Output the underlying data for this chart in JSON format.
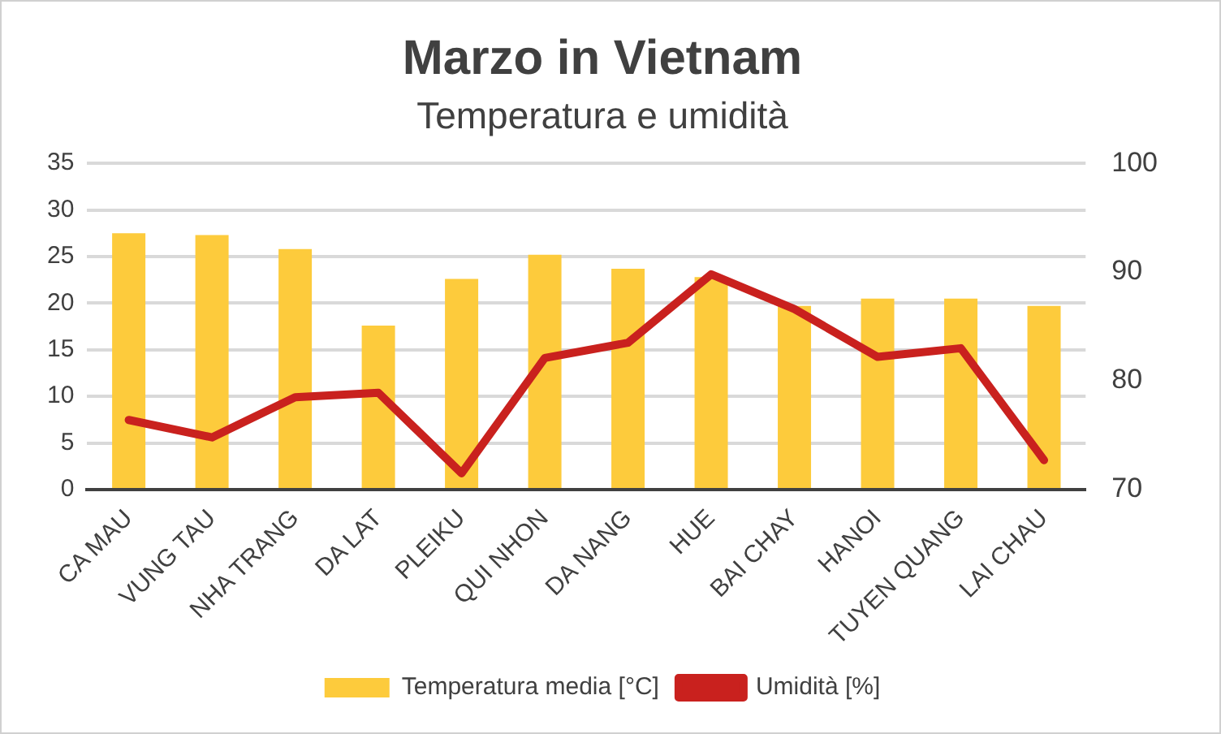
{
  "chart_data": {
    "type": "bar",
    "title": "Marzo in Vietnam",
    "subtitle": "Temperatura e umidità",
    "categories": [
      "CA MAU",
      "VUNG TAU",
      "NHA TRANG",
      "DA LAT",
      "PLEIKU",
      "QUI NHON",
      "DA NANG",
      "HUE",
      "BAI CHAY",
      "HANOI",
      "TUYEN QUANG",
      "LAI CHAU"
    ],
    "series": [
      {
        "name": "Temperatura media [°C]",
        "color": "#fdcb3c",
        "values": [
          27.5,
          27.3,
          25.8,
          17.6,
          22.6,
          25.2,
          23.7,
          22.8,
          19.7,
          20.5,
          20.5,
          19.7
        ]
      },
      {
        "name": "Umidità [%]",
        "type": "line",
        "axis": "y2",
        "color": "#c9211e",
        "values": [
          76.4,
          74.8,
          78.5,
          78.9,
          71.5,
          82.1,
          83.5,
          89.8,
          86.6,
          82.2,
          83,
          72.7
        ]
      }
    ],
    "ylim": [
      0,
      35
    ],
    "yticks": [
      0,
      5,
      10,
      15,
      20,
      25,
      30,
      35
    ],
    "y2lim": [
      70,
      100
    ],
    "y2ticks": [
      70,
      80,
      90,
      100
    ],
    "grid": "y",
    "legend": "bottom",
    "marker": "none",
    "line_style": "solid"
  }
}
